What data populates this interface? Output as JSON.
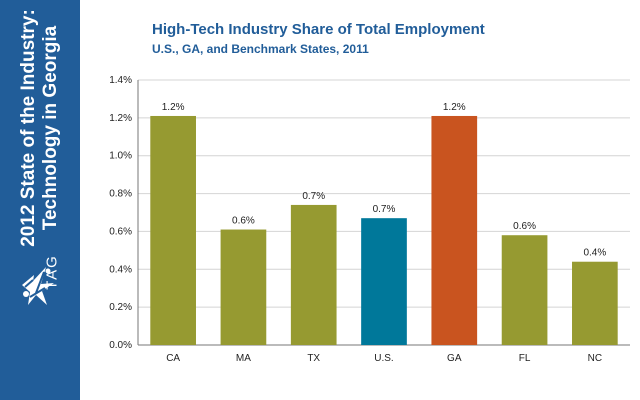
{
  "sidebar": {
    "title_line1": "2012 State of the Industry:",
    "title_line2": "Technology in Georgia",
    "logo_icon": "tag-star-logo-icon",
    "logo_text": "TAG"
  },
  "colors": {
    "sidebar_background": "#215d99",
    "title_text": "#215d99",
    "olive": "#969a31",
    "us_teal": "#00789a",
    "ga_orange": "#c9541f",
    "grid": "#d4d4d4",
    "axis": "#777777"
  },
  "chart_data": {
    "type": "bar",
    "title": "High-Tech Industry Share of Total Employment",
    "subtitle": "U.S., GA, and Benchmark States, 2011",
    "categories": [
      "CA",
      "MA",
      "TX",
      "U.S.",
      "GA",
      "FL",
      "NC"
    ],
    "values": [
      1.21,
      0.61,
      0.74,
      0.67,
      1.21,
      0.58,
      0.44
    ],
    "data_labels": [
      "1.2%",
      "0.6%",
      "0.7%",
      "0.7%",
      "1.2%",
      "0.6%",
      "0.4%"
    ],
    "bar_colors": [
      "#969a31",
      "#969a31",
      "#969a31",
      "#00789a",
      "#c9541f",
      "#969a31",
      "#969a31"
    ],
    "ylim": [
      0,
      1.4
    ],
    "yticks": [
      0,
      0.2,
      0.4,
      0.6,
      0.8,
      1.0,
      1.2,
      1.4
    ],
    "ytick_labels": [
      "0.0%",
      "0.2%",
      "0.4%",
      "0.6%",
      "0.8%",
      "1.0%",
      "1.2%",
      "1.4%"
    ],
    "xlabel": "",
    "ylabel": "",
    "grid": true,
    "legend": "none"
  }
}
